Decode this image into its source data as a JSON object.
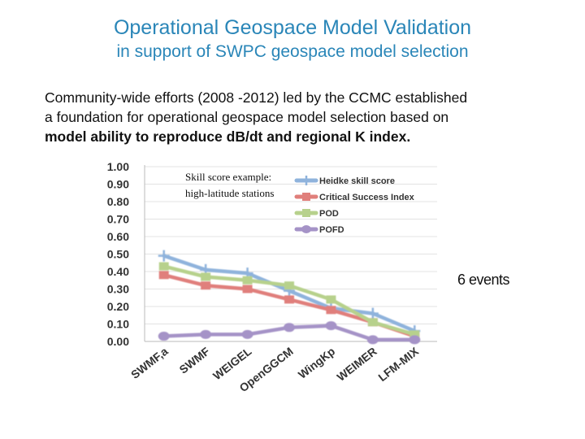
{
  "slide": {
    "title": "Operational Geospace Model Validation",
    "subtitle": "in support of SWPC geospace model selection",
    "body_line1": "Community-wide efforts  (2008 -2012) led by the CCMC established",
    "body_line2": "a foundation for operational geospace model selection based on",
    "body_line3": "model ability to reproduce dB/dt and regional K index.",
    "side_note": "6 events"
  },
  "chart_data": {
    "type": "line",
    "annotation_line1": "Skill score example:",
    "annotation_line2": "high-latitude stations",
    "categories": [
      "SWMF,a",
      "SWMF",
      "WEIGEL",
      "OpenGGCM",
      "WingKp",
      "WEIMER",
      "LFM-MIX"
    ],
    "ylim": [
      0,
      1.0
    ],
    "yticks": [
      "0.00",
      "0.10",
      "0.20",
      "0.30",
      "0.40",
      "0.50",
      "0.60",
      "0.70",
      "0.80",
      "0.90",
      "1.00"
    ],
    "grid": "horizontal",
    "legend_position": "top-right",
    "series": [
      {
        "name": "Heidke skill score",
        "color": "#8fb3dc",
        "values": [
          0.49,
          0.41,
          0.39,
          0.29,
          0.19,
          0.16,
          0.06
        ]
      },
      {
        "name": "Critical Success Index",
        "color": "#e07f7b",
        "values": [
          0.38,
          0.32,
          0.3,
          0.24,
          0.18,
          0.11,
          0.03
        ]
      },
      {
        "name": "POD",
        "color": "#b7d18c",
        "values": [
          0.43,
          0.37,
          0.35,
          0.32,
          0.24,
          0.11,
          0.04
        ]
      },
      {
        "name": "POFD",
        "color": "#a593c7",
        "values": [
          0.03,
          0.04,
          0.04,
          0.08,
          0.09,
          0.01,
          0.01
        ]
      }
    ]
  }
}
